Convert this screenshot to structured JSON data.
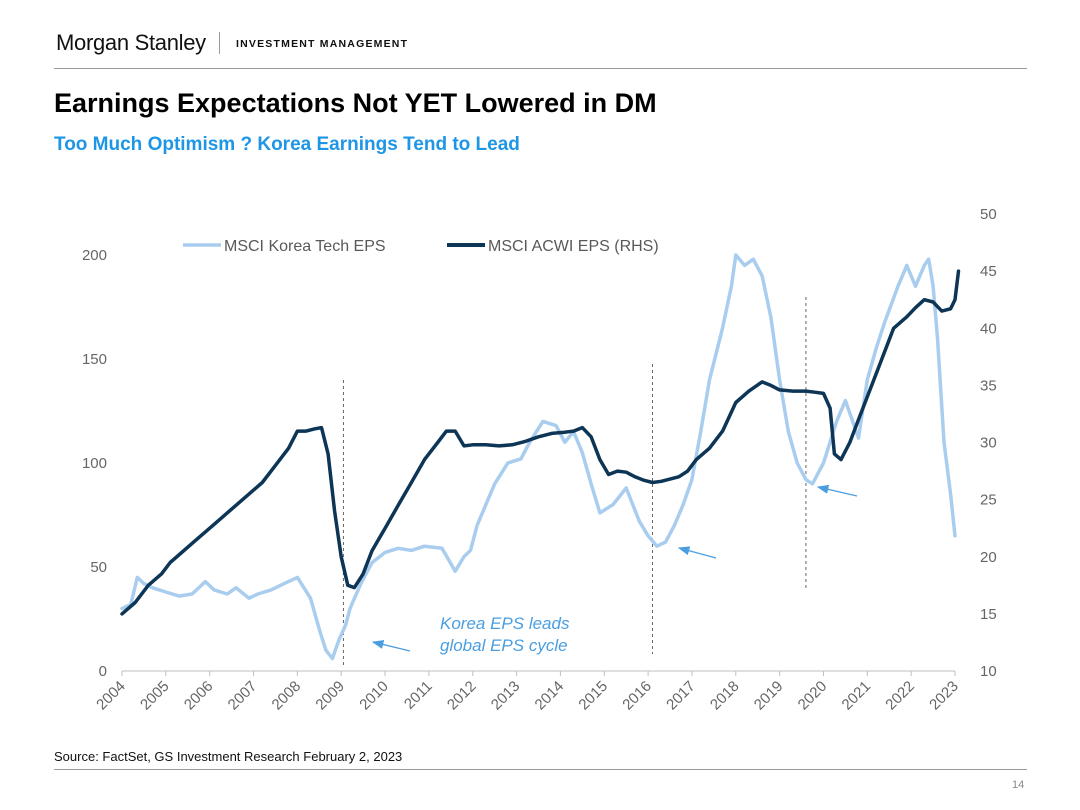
{
  "header": {
    "brand": "Morgan Stanley",
    "division": "INVESTMENT MANAGEMENT"
  },
  "slide": {
    "title": "Earnings Expectations Not YET Lowered in DM",
    "subtitle": "Too Much Optimism ?  Korea Earnings Tend to Lead",
    "source": "Source: FactSet, GS Investment Research February 2, 2023",
    "page_number": "14"
  },
  "colors": {
    "korea_series": "#a9cdee",
    "acwi_series": "#0d3556",
    "subtitle": "#1e96e6",
    "annotation": "#4a9ee0",
    "axis_text": "#666666",
    "vline": "#555555"
  },
  "chart_data": {
    "type": "line",
    "title": "",
    "xlabel": "",
    "x_ticks": [
      "2004",
      "2005",
      "2006",
      "2007",
      "2008",
      "2009",
      "2010",
      "2011",
      "2012",
      "2013",
      "2014",
      "2015",
      "2016",
      "2017",
      "2018",
      "2019",
      "2020",
      "2021",
      "2022",
      "2023"
    ],
    "xlim": [
      2004,
      2023
    ],
    "ylim_left": [
      0,
      200
    ],
    "yticks_left": [
      0,
      50,
      100,
      150,
      200
    ],
    "ylim_right": [
      10,
      50
    ],
    "yticks_right": [
      10,
      15,
      20,
      25,
      30,
      35,
      40,
      45,
      50
    ],
    "legend": {
      "placement": "top-left",
      "entries": [
        "MSCI Korea Tech EPS",
        "MSCI ACWI EPS (RHS)"
      ]
    },
    "series": [
      {
        "name": "MSCI Korea Tech EPS",
        "axis": "left",
        "x": [
          2004.0,
          2004.2,
          2004.35,
          2004.5,
          2004.7,
          2005.0,
          2005.3,
          2005.6,
          2005.9,
          2006.1,
          2006.4,
          2006.6,
          2006.9,
          2007.1,
          2007.4,
          2007.7,
          2008.0,
          2008.3,
          2008.5,
          2008.65,
          2008.8,
          2008.95,
          2009.1,
          2009.2,
          2009.45,
          2009.7,
          2010.0,
          2010.3,
          2010.6,
          2010.9,
          2011.3,
          2011.6,
          2011.8,
          2011.95,
          2012.1,
          2012.3,
          2012.5,
          2012.8,
          2013.1,
          2013.3,
          2013.6,
          2013.9,
          2014.1,
          2014.3,
          2014.5,
          2014.7,
          2014.9,
          2015.2,
          2015.5,
          2015.8,
          2016.0,
          2016.2,
          2016.4,
          2016.6,
          2016.8,
          2017.0,
          2017.2,
          2017.4,
          2017.7,
          2017.9,
          2018.0,
          2018.2,
          2018.4,
          2018.6,
          2018.8,
          2019.0,
          2019.2,
          2019.4,
          2019.6,
          2019.75,
          2020.0,
          2020.3,
          2020.5,
          2020.8,
          2021.0,
          2021.2,
          2021.4,
          2021.7,
          2021.9,
          2022.1,
          2022.3,
          2022.4,
          2022.5,
          2022.6,
          2022.75,
          2022.9,
          2023.0
        ],
        "values": [
          30,
          32,
          45,
          42,
          40,
          38,
          36,
          37,
          43,
          39,
          37,
          40,
          35,
          37,
          39,
          42,
          45,
          35,
          20,
          10,
          6,
          15,
          22,
          30,
          42,
          52,
          57,
          59,
          58,
          60,
          59,
          48,
          55,
          58,
          70,
          80,
          90,
          100,
          102,
          110,
          120,
          118,
          110,
          115,
          105,
          90,
          76,
          80,
          88,
          72,
          65,
          60,
          62,
          70,
          80,
          92,
          115,
          140,
          165,
          185,
          200,
          195,
          198,
          190,
          170,
          140,
          115,
          100,
          92,
          90,
          100,
          120,
          130,
          112,
          140,
          155,
          168,
          185,
          195,
          185,
          195,
          198,
          185,
          160,
          110,
          85,
          65
        ]
      },
      {
        "name": "MSCI ACWI EPS (RHS)",
        "axis": "right",
        "x": [
          2004.0,
          2004.3,
          2004.6,
          2004.9,
          2005.1,
          2005.4,
          2005.7,
          2006.0,
          2006.3,
          2006.6,
          2006.9,
          2007.2,
          2007.5,
          2007.8,
          2008.0,
          2008.2,
          2008.4,
          2008.55,
          2008.7,
          2008.85,
          2009.0,
          2009.15,
          2009.3,
          2009.5,
          2009.7,
          2010.0,
          2010.3,
          2010.6,
          2010.9,
          2011.2,
          2011.4,
          2011.6,
          2011.8,
          2012.0,
          2012.3,
          2012.6,
          2012.9,
          2013.2,
          2013.5,
          2013.8,
          2014.1,
          2014.3,
          2014.5,
          2014.7,
          2014.9,
          2015.1,
          2015.3,
          2015.5,
          2015.7,
          2015.9,
          2016.1,
          2016.3,
          2016.5,
          2016.7,
          2016.9,
          2017.1,
          2017.4,
          2017.7,
          2018.0,
          2018.3,
          2018.6,
          2018.8,
          2019.0,
          2019.3,
          2019.6,
          2019.8,
          2020.0,
          2020.15,
          2020.25,
          2020.4,
          2020.6,
          2020.8,
          2021.0,
          2021.3,
          2021.6,
          2021.9,
          2022.1,
          2022.3,
          2022.5,
          2022.7,
          2022.9,
          2023.0,
          2023.08
        ],
        "values": [
          15,
          16,
          17.5,
          18.5,
          19.5,
          20.5,
          21.5,
          22.5,
          23.5,
          24.5,
          25.5,
          26.5,
          28,
          29.5,
          31,
          31,
          31.2,
          31.3,
          29,
          24,
          20,
          17.5,
          17.3,
          18.5,
          20.5,
          22.5,
          24.5,
          26.5,
          28.5,
          30,
          31,
          31,
          29.7,
          29.8,
          29.8,
          29.7,
          29.8,
          30.1,
          30.5,
          30.8,
          30.9,
          31,
          31.3,
          30.5,
          28.5,
          27.2,
          27.5,
          27.4,
          27.0,
          26.7,
          26.5,
          26.6,
          26.8,
          27.0,
          27.5,
          28.5,
          29.5,
          31,
          33.5,
          34.5,
          35.3,
          35,
          34.6,
          34.5,
          34.5,
          34.4,
          34.3,
          33,
          29,
          28.5,
          30,
          32,
          34,
          37,
          40,
          41,
          41.8,
          42.5,
          42.3,
          41.5,
          41.7,
          42.5,
          45
        ]
      }
    ],
    "vertical_markers": [
      2009.05,
      2016.1,
      2019.6
    ],
    "annotation": {
      "text_line1": "Korea EPS leads",
      "text_line2": "global EPS cycle"
    }
  }
}
